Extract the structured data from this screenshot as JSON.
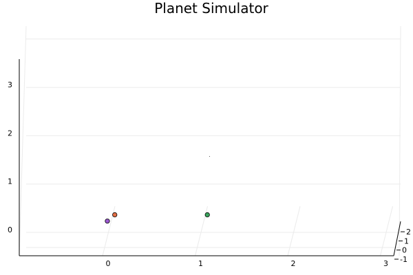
{
  "chart_data": {
    "type": "scatter",
    "projection": "3d",
    "title": "Planet Simulator",
    "grid": true,
    "legend": "none",
    "x_ticks": [
      "0",
      "1",
      "2",
      "3"
    ],
    "y_ticks": [
      "-1",
      "0",
      "1",
      "2"
    ],
    "z_ticks": [
      "0",
      "1",
      "2",
      "3"
    ],
    "points": [
      {
        "x": 0.05,
        "y": 0.0,
        "z": 0.3,
        "color": "#e26f46"
      },
      {
        "x": -0.03,
        "y": 0.0,
        "z": 0.17,
        "color": "#9b59d0"
      },
      {
        "x": 1.05,
        "y": 0.0,
        "z": 0.3,
        "color": "#3aa55d"
      }
    ]
  }
}
